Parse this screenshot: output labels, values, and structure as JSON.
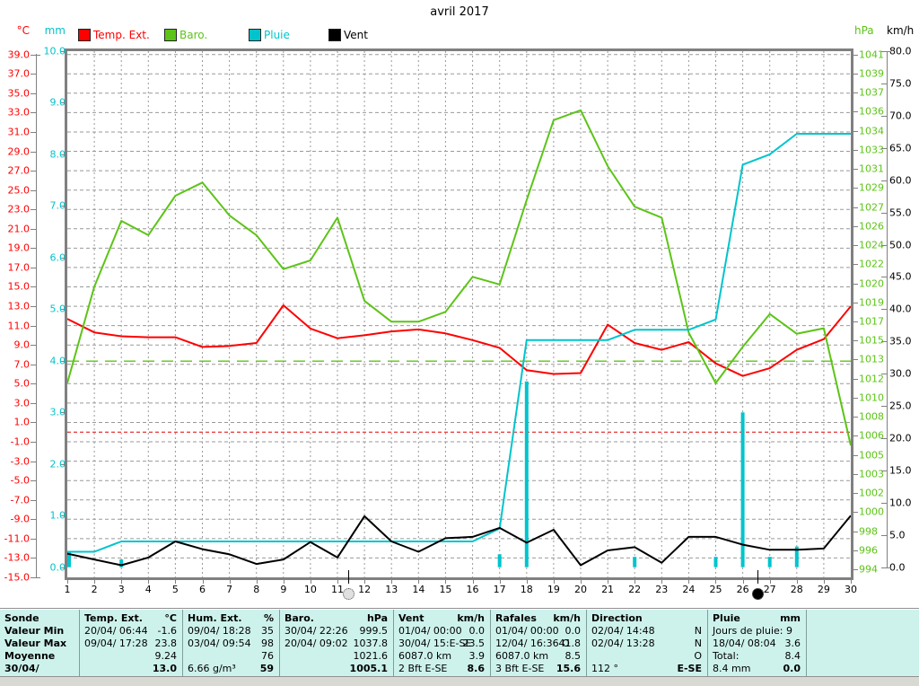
{
  "title": "avril 2017",
  "units": {
    "temp": "°C",
    "rain": "mm",
    "baro": "hPa",
    "wind": "km/h"
  },
  "colors": {
    "temp": "#ff0000",
    "baro": "#5cc417",
    "rain": "#00c4cc",
    "wind": "#000000",
    "grid": "#999999",
    "frame": "#808080",
    "ref_red": "#e00000",
    "table_bg": "#cdf2ec"
  },
  "legend": [
    {
      "label": "Temp. Ext.",
      "color": "#ff0000"
    },
    {
      "label": "Baro.",
      "color": "#5cc417"
    },
    {
      "label": "Pluie",
      "color": "#00c4cc"
    },
    {
      "label": "Vent",
      "color": "#000000"
    }
  ],
  "y_axes": {
    "temp": {
      "unit": "°C",
      "max": 39,
      "min": -15,
      "step": 2
    },
    "rain": {
      "unit": "mm",
      "max": 10,
      "min": 0,
      "step": 1
    },
    "wind": {
      "unit": "km/h",
      "max": 80,
      "min": 0,
      "step": 5
    },
    "baro_labels": [
      "1041",
      "1039",
      "1037",
      "1036",
      "1034",
      "1033",
      "1031",
      "1029",
      "1027",
      "1026",
      "1024",
      "1022",
      "1020",
      "1019",
      "1017",
      "1015",
      "1013",
      "1012",
      "1010",
      "1008",
      "1006",
      "1005",
      "1003",
      "1002",
      "1000",
      "998",
      "996",
      "994"
    ]
  },
  "x_days": [
    "1",
    "2",
    "3",
    "4",
    "5",
    "6",
    "7",
    "8",
    "9",
    "10",
    "11",
    "12",
    "13",
    "14",
    "15",
    "16",
    "17",
    "18",
    "19",
    "20",
    "21",
    "22",
    "23",
    "24",
    "25",
    "26",
    "27",
    "28",
    "29",
    "30"
  ],
  "reference_lines": {
    "baro_standard_hpa": 1013,
    "temp_zero_c": 0
  },
  "moon_phases": [
    {
      "type": "full-moon",
      "day": 11.4
    },
    {
      "type": "new-moon",
      "day": 26.55
    }
  ],
  "chart_data": {
    "type": "line",
    "title": "avril 2017",
    "x": [
      1,
      2,
      3,
      4,
      5,
      6,
      7,
      8,
      9,
      10,
      11,
      12,
      13,
      14,
      15,
      16,
      17,
      18,
      19,
      20,
      21,
      22,
      23,
      24,
      25,
      26,
      27,
      28,
      29,
      30
    ],
    "series": [
      {
        "name": "Temp. Ext.",
        "unit": "°C",
        "axis": "temp",
        "color": "#ff0000",
        "ylim": [
          -15,
          39
        ],
        "values": [
          11.7,
          10.3,
          9.9,
          9.8,
          9.8,
          8.8,
          8.9,
          9.2,
          13.1,
          10.7,
          9.7,
          10.0,
          10.4,
          10.6,
          10.2,
          9.5,
          8.7,
          6.4,
          6.0,
          6.1,
          11.1,
          9.2,
          8.5,
          9.3,
          7.1,
          5.8,
          6.6,
          8.5,
          9.6,
          13.0
        ]
      },
      {
        "name": "Baro.",
        "unit": "hPa",
        "axis": "baro",
        "color": "#5cc417",
        "ylim": [
          994,
          1041
        ],
        "values": [
          1011.0,
          1019.8,
          1025.8,
          1024.5,
          1028.1,
          1029.3,
          1026.3,
          1024.5,
          1021.4,
          1022.2,
          1026.1,
          1018.5,
          1016.6,
          1016.6,
          1017.5,
          1020.7,
          1020.0,
          1027.7,
          1035.0,
          1035.9,
          1030.8,
          1027.1,
          1026.1,
          1015.6,
          1011.0,
          1014.3,
          1017.3,
          1015.5,
          1016.0,
          1005.3
        ]
      },
      {
        "name": "Pluie (cumul)",
        "unit": "mm",
        "axis": "rain",
        "color": "#00c4cc",
        "ylim": [
          0,
          10
        ],
        "values": [
          0.3,
          0.3,
          0.5,
          0.5,
          0.5,
          0.5,
          0.5,
          0.5,
          0.5,
          0.5,
          0.5,
          0.5,
          0.5,
          0.5,
          0.5,
          0.5,
          0.75,
          4.4,
          4.4,
          4.4,
          4.4,
          4.6,
          4.6,
          4.6,
          4.8,
          7.8,
          8.0,
          8.4,
          8.4,
          8.4
        ]
      },
      {
        "name": "Vent",
        "unit": "km/h",
        "axis": "wind",
        "color": "#000000",
        "ylim": [
          0,
          80
        ],
        "values": [
          2.1,
          1.2,
          0.3,
          1.5,
          4.0,
          2.8,
          2.0,
          0.5,
          1.2,
          3.9,
          1.5,
          7.9,
          4.0,
          2.4,
          4.5,
          4.7,
          6.1,
          3.8,
          5.8,
          0.3,
          2.6,
          3.1,
          0.7,
          4.7,
          4.7,
          3.5,
          2.7,
          2.7,
          2.9,
          8.0
        ]
      }
    ],
    "rain_bars_mm": {
      "1": 0.3,
      "3": 0.15,
      "17": 0.25,
      "18": 3.6,
      "22": 0.2,
      "25": 0.2,
      "26": 3.0,
      "27": 0.2,
      "28": 0.4
    },
    "legend_position": "top",
    "grid": true
  },
  "table": {
    "row_labels": [
      "Sonde",
      "Valeur Min",
      "Valeur Max",
      "Moyenne",
      "30/04/"
    ],
    "columns": [
      {
        "title": "Temp. Ext.",
        "unit": "°C",
        "rows": [
          [
            "20/04/ 06:44",
            "-1.6"
          ],
          [
            "09/04/ 17:28",
            "23.8"
          ],
          [
            "",
            "9.24"
          ],
          [
            "",
            "13.0"
          ]
        ]
      },
      {
        "title": "Hum. Ext.",
        "unit": "%",
        "rows": [
          [
            "09/04/ 18:28",
            "35"
          ],
          [
            "03/04/ 09:54",
            "98"
          ],
          [
            "",
            "76"
          ],
          [
            "6.66 g/m³",
            "59"
          ]
        ]
      },
      {
        "title": "Baro.",
        "unit": "hPa",
        "rows": [
          [
            "30/04/ 22:26",
            "999.5"
          ],
          [
            "20/04/ 09:02",
            "1037.8"
          ],
          [
            "",
            "1021.6"
          ],
          [
            "",
            "1005.1"
          ]
        ]
      },
      {
        "title": "Vent",
        "unit": "km/h",
        "rows": [
          [
            "01/04/ 00:00",
            "0.0"
          ],
          [
            "30/04/ 15:E-SE",
            "23.5"
          ],
          [
            "6087.0 km",
            "3.9"
          ],
          [
            "2 Bft E-SE",
            "8.6"
          ]
        ]
      },
      {
        "title": "Rafales",
        "unit": "km/h",
        "rows": [
          [
            "01/04/ 00:00",
            "0.0"
          ],
          [
            "12/04/ 16:36 O",
            "41.8"
          ],
          [
            "6087.0 km",
            "8.5"
          ],
          [
            "3 Bft E-SE",
            "15.6"
          ]
        ]
      },
      {
        "title": "Direction",
        "unit": "",
        "rows": [
          [
            "02/04/ 14:48",
            "N"
          ],
          [
            "02/04/ 13:28",
            "N"
          ],
          [
            "",
            "O"
          ],
          [
            "112 °",
            "E-SE"
          ]
        ]
      },
      {
        "title": "Pluie",
        "unit": "mm",
        "rows": [
          [
            "Jours de pluie: 9",
            ""
          ],
          [
            "18/04/ 08:04",
            "3.6"
          ],
          [
            "Total:",
            "8.4"
          ],
          [
            "8.4 mm",
            "0.0"
          ]
        ]
      }
    ]
  }
}
